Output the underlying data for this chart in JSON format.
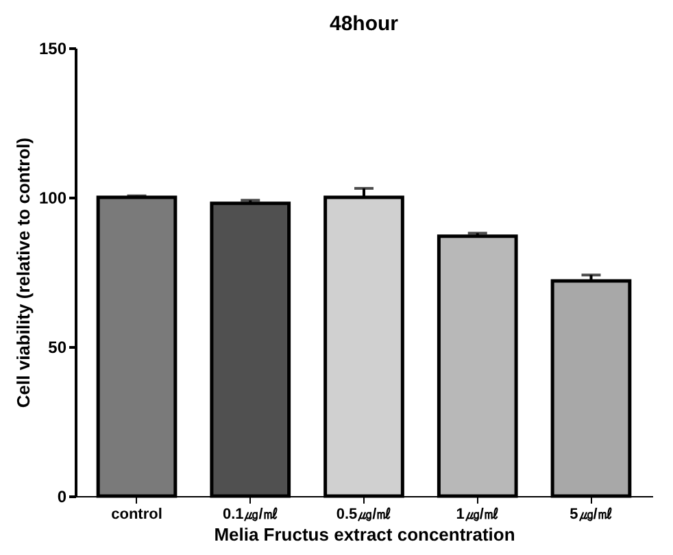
{
  "chart_data": {
    "type": "bar",
    "title": "48hour",
    "xlabel": "Melia Fructus extract concentration",
    "ylabel": "Cell viability (relative to control)",
    "categories": [
      "control",
      "0.1㎍/㎖",
      "0.5㎍/㎖",
      "1㎍/㎖",
      "5㎍/㎖"
    ],
    "values": [
      100,
      98,
      100,
      87,
      72
    ],
    "colors": [
      "#7a7a7a",
      "#505050",
      "#d0d0d0",
      "#b8b8b8",
      "#a8a8a8"
    ],
    "errors": [
      [
        100,
        100.5
      ],
      [
        98,
        99
      ],
      [
        100,
        103
      ],
      [
        87,
        88
      ],
      [
        72,
        74
      ]
    ],
    "ylim": [
      0,
      150
    ],
    "yticks": [
      0,
      50,
      100,
      150
    ],
    "grid": false
  }
}
